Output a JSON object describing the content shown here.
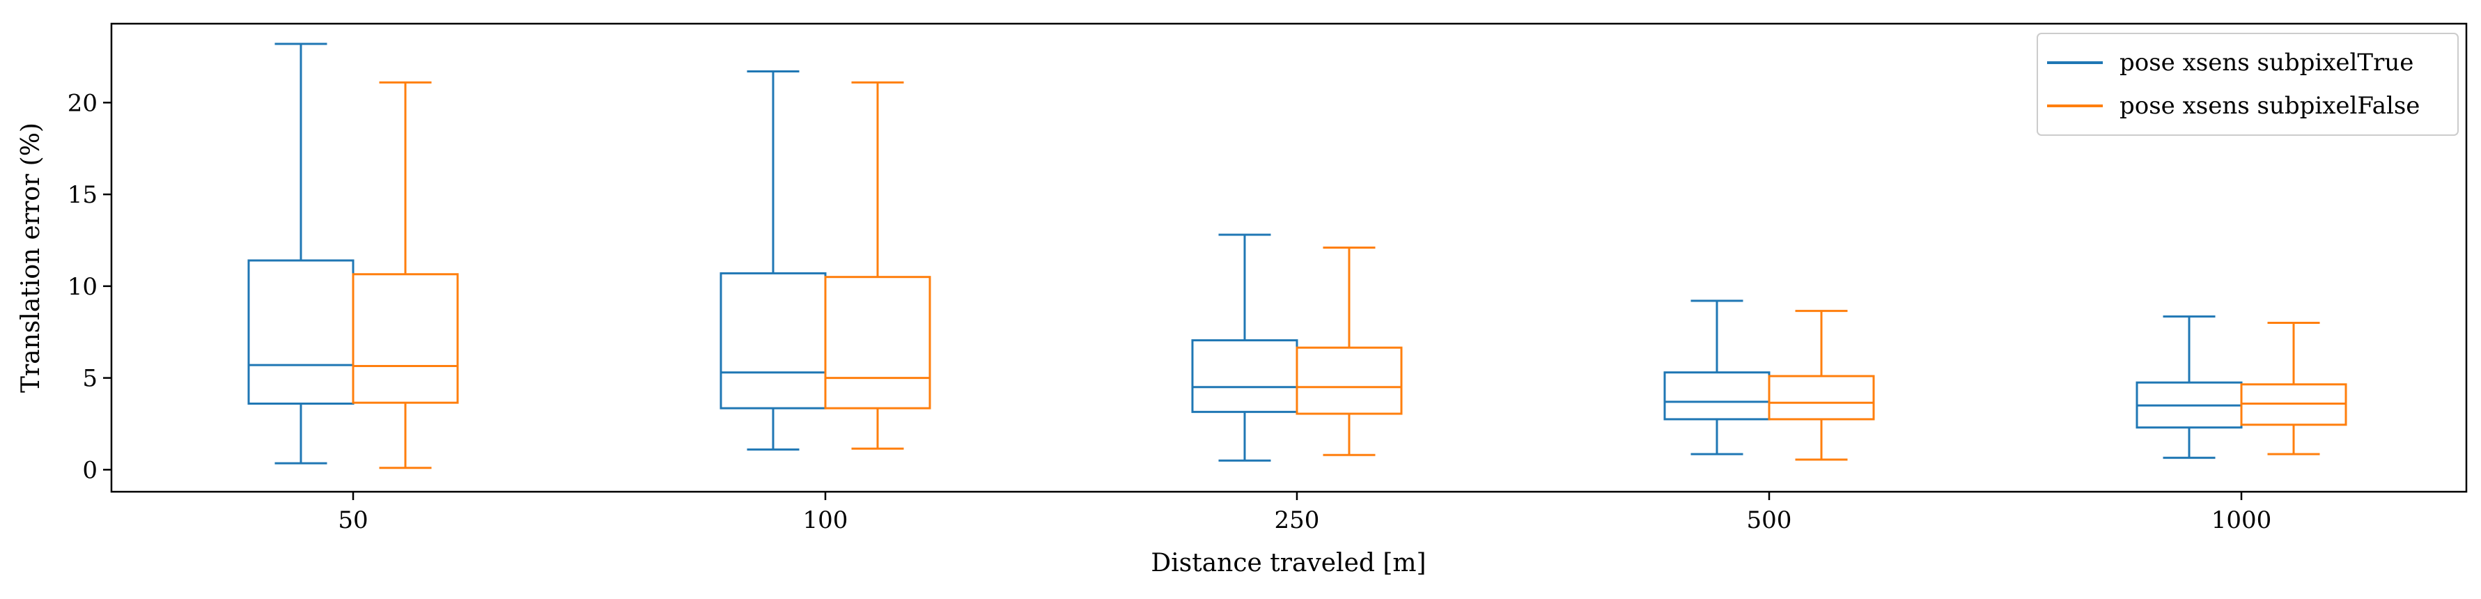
{
  "chart_data": {
    "type": "box",
    "xlabel": "Distance traveled [m]",
    "ylabel": "Translation error (%)",
    "categories": [
      "50",
      "100",
      "250",
      "500",
      "1000"
    ],
    "ylim": [
      -1.2,
      24.3
    ],
    "yticks": [
      0,
      5,
      10,
      15,
      20
    ],
    "grid": false,
    "legend_position": "top-right",
    "series": [
      {
        "name": "pose xsens subpixelTrue",
        "color": "#1f77b4",
        "boxes": [
          {
            "whisker_low": 0.35,
            "q1": 3.6,
            "median": 5.7,
            "q3": 11.4,
            "whisker_high": 23.2
          },
          {
            "whisker_low": 1.1,
            "q1": 3.35,
            "median": 5.3,
            "q3": 10.7,
            "whisker_high": 21.7
          },
          {
            "whisker_low": 0.5,
            "q1": 3.15,
            "median": 4.5,
            "q3": 7.05,
            "whisker_high": 12.8
          },
          {
            "whisker_low": 0.85,
            "q1": 2.75,
            "median": 3.7,
            "q3": 5.3,
            "whisker_high": 9.2
          },
          {
            "whisker_low": 0.65,
            "q1": 2.3,
            "median": 3.5,
            "q3": 4.75,
            "whisker_high": 8.35
          }
        ]
      },
      {
        "name": "pose xsens subpixelFalse",
        "color": "#ff7f0e",
        "boxes": [
          {
            "whisker_low": 0.1,
            "q1": 3.65,
            "median": 5.65,
            "q3": 10.65,
            "whisker_high": 21.1
          },
          {
            "whisker_low": 1.15,
            "q1": 3.35,
            "median": 5.0,
            "q3": 10.5,
            "whisker_high": 21.1
          },
          {
            "whisker_low": 0.8,
            "q1": 3.05,
            "median": 4.5,
            "q3": 6.65,
            "whisker_high": 12.1
          },
          {
            "whisker_low": 0.55,
            "q1": 2.75,
            "median": 3.65,
            "q3": 5.1,
            "whisker_high": 8.65
          },
          {
            "whisker_low": 0.85,
            "q1": 2.45,
            "median": 3.6,
            "q3": 4.65,
            "whisker_high": 8.0
          }
        ]
      }
    ]
  }
}
